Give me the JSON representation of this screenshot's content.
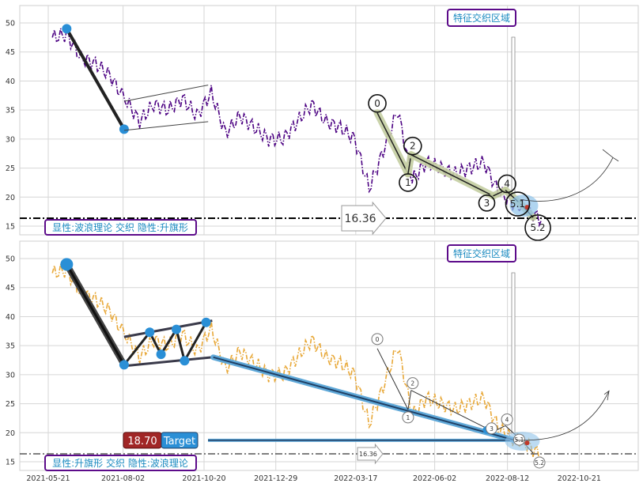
{
  "chart_data": [
    {
      "type": "line",
      "panel": "top",
      "title": "",
      "xlabel": "",
      "ylabel": "",
      "ylim": [
        13.5,
        53
      ],
      "yticks": [
        15,
        20,
        25,
        30,
        35,
        40,
        45,
        50
      ],
      "grid": true,
      "series": [
        {
          "style": "dash-dot",
          "color": "#4b0082",
          "x": [
            "2021-05-25",
            "2021-06-08",
            "2021-06-22",
            "2021-07-06",
            "2021-07-20",
            "2021-08-04",
            "2021-08-18",
            "2021-09-01",
            "2021-09-15",
            "2021-09-29",
            "2021-10-13",
            "2021-10-27",
            "2021-11-10",
            "2021-11-24",
            "2021-12-08",
            "2021-12-22",
            "2022-01-05",
            "2022-01-19",
            "2022-02-02",
            "2022-02-16",
            "2022-03-02",
            "2022-03-16",
            "2022-03-30",
            "2022-04-13",
            "2022-04-27",
            "2022-05-11",
            "2022-05-25",
            "2022-06-08",
            "2022-06-22",
            "2022-07-06",
            "2022-07-20",
            "2022-08-03",
            "2022-08-17",
            "2022-08-31",
            "2022-09-14"
          ],
          "y": [
            47.5,
            48,
            44,
            43,
            41,
            37,
            33,
            36,
            35,
            37,
            34,
            38,
            31,
            34,
            32,
            30,
            30,
            33,
            36,
            33,
            32,
            30,
            21.5,
            28,
            35,
            23,
            26,
            25,
            24,
            25,
            26,
            21,
            19,
            18,
            16
          ]
        }
      ],
      "elliott_points": [
        {
          "label": "0",
          "x": "2022-04-07",
          "y": 34.5
        },
        {
          "label": "1",
          "x": "2022-05-07",
          "y": 24.0
        },
        {
          "label": "2",
          "x": "2022-05-10",
          "y": 27.3
        },
        {
          "label": "3",
          "x": "2022-07-29",
          "y": 20.2
        },
        {
          "label": "4",
          "x": "2022-08-10",
          "y": 21.2
        },
        {
          "label": "5.1",
          "x": "2022-08-25",
          "y": 18.8
        },
        {
          "label": "5.2",
          "x": "2022-09-06",
          "y": 16.5
        }
      ],
      "pole_points": [
        {
          "x": "2021-06-08",
          "y": 49
        },
        {
          "x": "2021-08-03",
          "y": 31.7
        }
      ],
      "flag_channel": {
        "upper": [
          {
            "x": "2021-08-03",
            "y": 36.5
          },
          {
            "x": "2021-10-24",
            "y": 39.3
          }
        ],
        "lower": [
          {
            "x": "2021-08-03",
            "y": 31.5
          },
          {
            "x": "2021-10-24",
            "y": 33.0
          }
        ]
      },
      "horizontal_line": {
        "y": 16.36,
        "label": "16.36"
      },
      "annotations": {
        "zone_label": "特征交织区域",
        "pattern_label": "显性:波浪理论 交织 隐性:升旗形"
      }
    },
    {
      "type": "line",
      "panel": "bottom",
      "title": "",
      "xlabel": "",
      "ylabel": "",
      "ylim": [
        13.5,
        53
      ],
      "yticks": [
        15,
        20,
        25,
        30,
        35,
        40,
        45,
        50
      ],
      "xticks": [
        "2021-05-21",
        "2021-08-02",
        "2021-10-20",
        "2021-12-29",
        "2022-03-17",
        "2022-06-02",
        "2022-08-12",
        "2022-10-21"
      ],
      "grid": true,
      "series": [
        {
          "style": "dash-dot",
          "color": "#e8a838",
          "x": [
            "2021-05-25",
            "2021-06-08",
            "2021-06-22",
            "2021-07-06",
            "2021-07-20",
            "2021-08-04",
            "2021-08-18",
            "2021-09-01",
            "2021-09-15",
            "2021-09-29",
            "2021-10-13",
            "2021-10-27",
            "2021-11-10",
            "2021-11-24",
            "2021-12-08",
            "2021-12-22",
            "2022-01-05",
            "2022-01-19",
            "2022-02-02",
            "2022-02-16",
            "2022-03-02",
            "2022-03-16",
            "2022-03-30",
            "2022-04-13",
            "2022-04-27",
            "2022-05-11",
            "2022-05-25",
            "2022-06-08",
            "2022-06-22",
            "2022-07-06",
            "2022-07-20",
            "2022-08-03",
            "2022-08-17",
            "2022-08-31",
            "2022-09-14"
          ],
          "y": [
            47.5,
            48,
            44,
            43,
            41,
            37,
            33,
            36,
            35,
            37,
            34,
            38,
            31,
            34,
            32,
            30,
            30,
            33,
            36,
            33,
            32,
            30,
            21.5,
            28,
            35,
            23,
            26,
            25,
            24,
            25,
            26,
            21,
            19,
            18,
            16
          ]
        }
      ],
      "flag_points": [
        {
          "x": "2021-06-08",
          "y": 49
        },
        {
          "x": "2021-08-03",
          "y": 31.7
        },
        {
          "x": "2021-08-28",
          "y": 37.3
        },
        {
          "x": "2021-09-08",
          "y": 33.5
        },
        {
          "x": "2021-09-23",
          "y": 37.8
        },
        {
          "x": "2021-10-01",
          "y": 32.4
        },
        {
          "x": "2021-10-22",
          "y": 39.0
        }
      ],
      "elliott_points": [
        {
          "label": "0",
          "x": "2022-04-07",
          "y": 34.5
        },
        {
          "label": "1",
          "x": "2022-05-07",
          "y": 24.0
        },
        {
          "label": "2",
          "x": "2022-05-10",
          "y": 27.3
        },
        {
          "label": "3",
          "x": "2022-07-29",
          "y": 20.2
        },
        {
          "label": "4",
          "x": "2022-08-10",
          "y": 21.2
        },
        {
          "label": "5.1",
          "x": "2022-08-25",
          "y": 18.8
        },
        {
          "label": "5.2",
          "x": "2022-09-06",
          "y": 16.5
        }
      ],
      "trend_line": [
        {
          "x": "2021-10-29",
          "y": 33.0
        },
        {
          "x": "2022-08-19",
          "y": 18.7
        }
      ],
      "horizontal_line": {
        "y": 16.36,
        "label": "16.36"
      },
      "target": {
        "value": "18.70",
        "label": "Target",
        "y": 18.7
      },
      "annotations": {
        "zone_label": "特征交织区域",
        "pattern_label": "显性:升旗形 交织 隐性:波浪理论"
      }
    }
  ]
}
